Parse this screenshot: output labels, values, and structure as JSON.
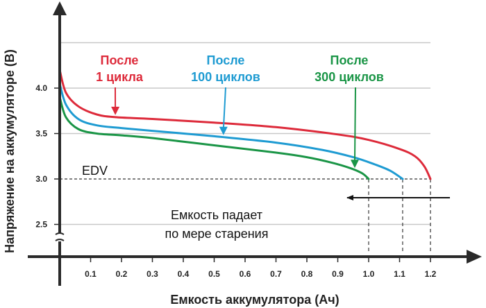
{
  "chart_data": {
    "type": "line",
    "xlabel": "Емкость аккумулятора (Ач)",
    "ylabel": "Напряжение на аккумуляторе (В)",
    "xlim": [
      0,
      1.25
    ],
    "ylim": [
      2.25,
      4.45
    ],
    "x_ticks": [
      "0.1",
      "0.2",
      "0.3",
      "0.4",
      "0.5",
      "0.6",
      "0.7",
      "0.8",
      "0.9",
      "1.0",
      "1.1",
      "1.2"
    ],
    "y_ticks": [
      "2.5",
      "3.0",
      "3.5",
      "4.0"
    ],
    "grid": true,
    "edv": {
      "label": "EDV",
      "value": 3.0
    },
    "note": [
      "Емкость падает",
      "по мере старения"
    ],
    "series": [
      {
        "name": "После 1 цикла",
        "label_lines": [
          "После",
          "1 цикла"
        ],
        "color": "#dd2a3a",
        "points": [
          [
            0.0,
            4.2
          ],
          [
            0.02,
            3.95
          ],
          [
            0.06,
            3.8
          ],
          [
            0.12,
            3.71
          ],
          [
            0.18,
            3.68
          ],
          [
            0.3,
            3.66
          ],
          [
            0.5,
            3.62
          ],
          [
            0.7,
            3.57
          ],
          [
            0.9,
            3.49
          ],
          [
            1.0,
            3.43
          ],
          [
            1.1,
            3.33
          ],
          [
            1.15,
            3.25
          ],
          [
            1.18,
            3.14
          ],
          [
            1.2,
            3.0
          ]
        ]
      },
      {
        "name": "После 100 циклов",
        "label_lines": [
          "После",
          "100 циклов"
        ],
        "color": "#1e9bd2",
        "points": [
          [
            0.0,
            4.05
          ],
          [
            0.02,
            3.82
          ],
          [
            0.06,
            3.66
          ],
          [
            0.12,
            3.59
          ],
          [
            0.2,
            3.56
          ],
          [
            0.3,
            3.53
          ],
          [
            0.5,
            3.47
          ],
          [
            0.7,
            3.4
          ],
          [
            0.85,
            3.32
          ],
          [
            0.95,
            3.24
          ],
          [
            1.02,
            3.16
          ],
          [
            1.07,
            3.09
          ],
          [
            1.11,
            3.0
          ]
        ]
      },
      {
        "name": "После 300 циклов",
        "label_lines": [
          "После",
          "300 циклов"
        ],
        "color": "#1a9546",
        "points": [
          [
            0.0,
            3.9
          ],
          [
            0.02,
            3.68
          ],
          [
            0.06,
            3.55
          ],
          [
            0.12,
            3.5
          ],
          [
            0.2,
            3.48
          ],
          [
            0.3,
            3.45
          ],
          [
            0.5,
            3.37
          ],
          [
            0.7,
            3.29
          ],
          [
            0.8,
            3.24
          ],
          [
            0.88,
            3.18
          ],
          [
            0.94,
            3.12
          ],
          [
            0.98,
            3.06
          ],
          [
            1.0,
            3.0
          ]
        ]
      }
    ]
  }
}
